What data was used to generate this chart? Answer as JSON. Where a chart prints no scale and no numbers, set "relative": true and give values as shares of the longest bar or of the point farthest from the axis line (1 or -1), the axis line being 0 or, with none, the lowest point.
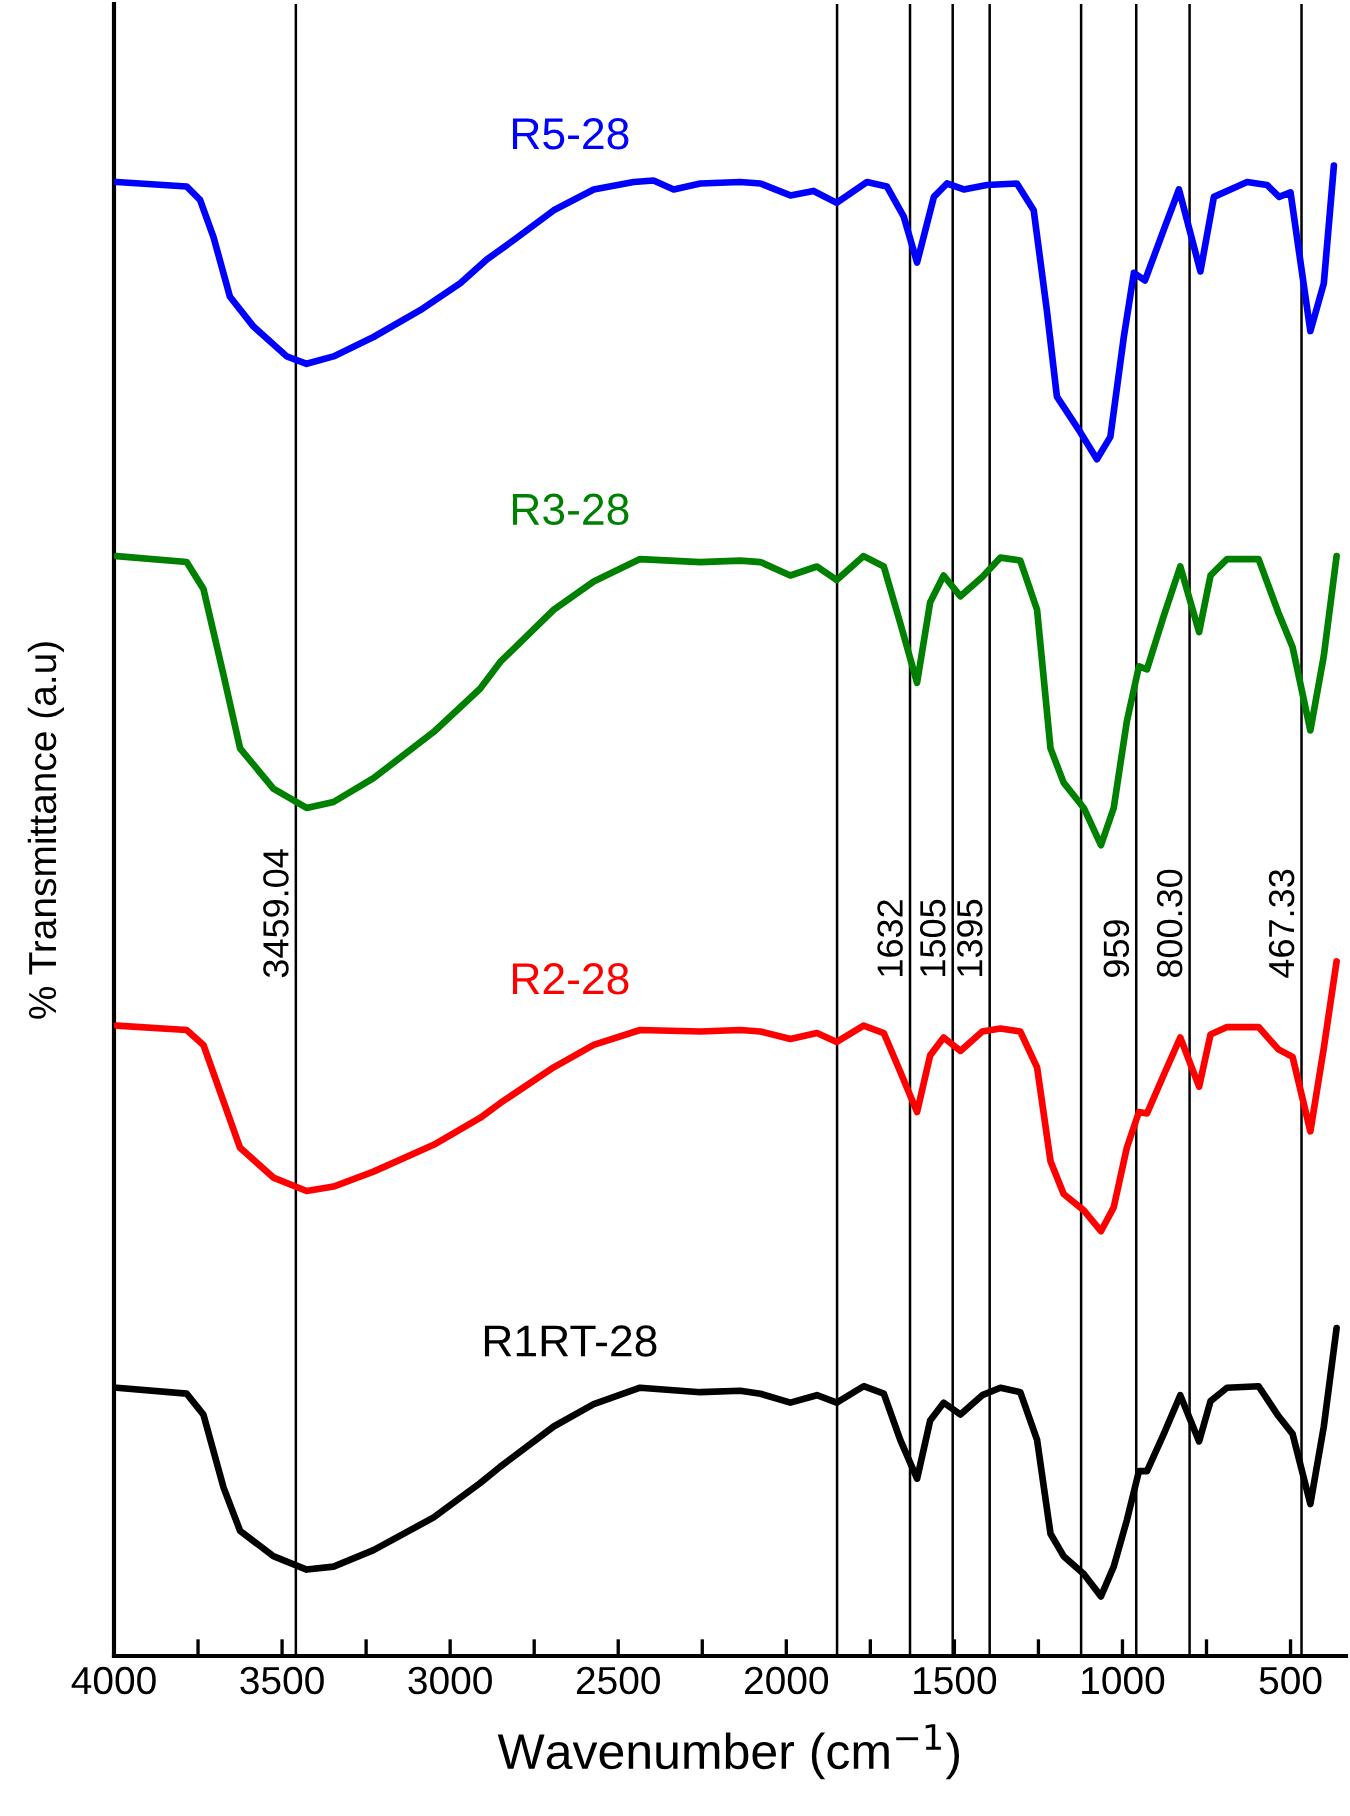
{
  "chart_data": {
    "type": "line",
    "relative": true,
    "xlabel": "Wavenumber (cm$^{−1}$)",
    "ylabel": "% Transmittance (a.u)",
    "xlim": [
      4000,
      335
    ],
    "xticks": [
      4000,
      {
        "value": 3750,
        "label": null
      },
      3500,
      {
        "value": 3250,
        "label": null
      },
      3000,
      {
        "value": 2750,
        "label": null
      },
      2500,
      {
        "value": 2250,
        "label": null
      },
      2000,
      {
        "value": 1750,
        "label": null
      },
      1500,
      {
        "value": 1250,
        "label": null
      },
      1000,
      {
        "value": 750,
        "label": null
      },
      500
    ],
    "grid": false,
    "legend": false,
    "tick_labels": "x",
    "marker": "none",
    "line_style": "solid",
    "ref_lines": [
      {
        "axis": "x",
        "value": 3459.04,
        "label": "3459.04"
      },
      {
        "axis": "x",
        "value": 1849,
        "label": null
      },
      {
        "axis": "x",
        "value": 1632,
        "label": "1632"
      },
      {
        "axis": "x",
        "value": 1505,
        "label": "1505"
      },
      {
        "axis": "x",
        "value": 1395,
        "label": "1395"
      },
      {
        "axis": "x",
        "value": 1123,
        "label": null
      },
      {
        "axis": "x",
        "value": 959,
        "label": "959"
      },
      {
        "axis": "x",
        "value": 800.3,
        "label": "800.30"
      },
      {
        "axis": "x",
        "value": 467.33,
        "label": "467.33"
      }
    ],
    "series": [
      {
        "name": "R5-28",
        "color": "#0000ff",
        "x": [
          3992,
          3784,
          3744,
          3704,
          3655,
          3585,
          3486,
          3427,
          3347,
          3228,
          3089,
          2970,
          2891,
          2811,
          2692,
          2573,
          2454,
          2395,
          2335,
          2256,
          2137,
          2077,
          1988,
          1919,
          1850,
          1760,
          1701,
          1651,
          1611,
          1561,
          1522,
          1472,
          1403,
          1314,
          1264,
          1225,
          1195,
          1125,
          1076,
          1036,
          996,
          966,
          933,
          877,
          832,
          768,
          728,
          629,
          570,
          534,
          500,
          441,
          401,
          371
        ],
        "values": [
          0.989,
          0.986,
          0.977,
          0.952,
          0.912,
          0.892,
          0.872,
          0.867,
          0.872,
          0.885,
          0.903,
          0.921,
          0.937,
          0.95,
          0.97,
          0.984,
          0.989,
          0.99,
          0.984,
          0.988,
          0.989,
          0.988,
          0.98,
          0.983,
          0.975,
          0.989,
          0.986,
          0.966,
          0.935,
          0.979,
          0.988,
          0.984,
          0.987,
          0.988,
          0.97,
          0.903,
          0.845,
          0.821,
          0.803,
          0.818,
          0.885,
          0.928,
          0.923,
          0.957,
          0.984,
          0.929,
          0.979,
          0.989,
          0.987,
          0.979,
          0.982,
          0.889,
          0.921,
          1.0
        ]
      },
      {
        "name": "R3-28",
        "color": "#008000",
        "x": [
          3992,
          3784,
          3734,
          3674,
          3625,
          3526,
          3427,
          3347,
          3228,
          3049,
          2911,
          2851,
          2692,
          2573,
          2435,
          2256,
          2137,
          2077,
          1988,
          1909,
          1850,
          1770,
          1710,
          1661,
          1611,
          1572,
          1532,
          1482,
          1417,
          1363,
          1304,
          1254,
          1214,
          1175,
          1115,
          1064,
          1026,
          987,
          951,
          927,
          877,
          828,
          772,
          738,
          689,
          595,
          536,
          494,
          441,
          401,
          363
        ],
        "values": [
          0.738,
          0.734,
          0.716,
          0.658,
          0.609,
          0.582,
          0.569,
          0.573,
          0.589,
          0.62,
          0.649,
          0.667,
          0.702,
          0.721,
          0.736,
          0.734,
          0.735,
          0.734,
          0.725,
          0.731,
          0.722,
          0.738,
          0.731,
          0.693,
          0.653,
          0.707,
          0.725,
          0.711,
          0.724,
          0.737,
          0.735,
          0.702,
          0.609,
          0.586,
          0.569,
          0.544,
          0.569,
          0.627,
          0.664,
          0.662,
          0.698,
          0.731,
          0.687,
          0.725,
          0.736,
          0.736,
          0.7,
          0.677,
          0.621,
          0.671,
          0.738
        ]
      },
      {
        "name": "R2-28",
        "color": "#ff0000",
        "x": [
          3992,
          3784,
          3734,
          3674,
          3625,
          3526,
          3427,
          3347,
          3228,
          3049,
          2911,
          2851,
          2692,
          2573,
          2435,
          2256,
          2137,
          2077,
          1988,
          1909,
          1850,
          1770,
          1710,
          1661,
          1611,
          1572,
          1532,
          1482,
          1417,
          1363,
          1304,
          1254,
          1214,
          1175,
          1115,
          1064,
          1026,
          987,
          951,
          927,
          877,
          828,
          772,
          738,
          689,
          595,
          536,
          494,
          441,
          401,
          363
        ],
        "values": [
          0.423,
          0.42,
          0.41,
          0.372,
          0.341,
          0.321,
          0.312,
          0.315,
          0.325,
          0.343,
          0.361,
          0.371,
          0.395,
          0.41,
          0.42,
          0.419,
          0.42,
          0.419,
          0.414,
          0.418,
          0.412,
          0.423,
          0.418,
          0.392,
          0.365,
          0.403,
          0.415,
          0.406,
          0.419,
          0.421,
          0.419,
          0.395,
          0.332,
          0.31,
          0.299,
          0.285,
          0.301,
          0.341,
          0.365,
          0.364,
          0.39,
          0.415,
          0.382,
          0.417,
          0.422,
          0.422,
          0.407,
          0.402,
          0.352,
          0.408,
          0.466
        ]
      },
      {
        "name": "R1RT-28",
        "color": "#000000",
        "x": [
          3992,
          3784,
          3734,
          3674,
          3625,
          3526,
          3427,
          3347,
          3228,
          3049,
          2911,
          2851,
          2692,
          2573,
          2435,
          2256,
          2137,
          2077,
          1988,
          1909,
          1850,
          1770,
          1710,
          1661,
          1611,
          1572,
          1532,
          1482,
          1417,
          1363,
          1304,
          1254,
          1214,
          1175,
          1115,
          1064,
          1026,
          987,
          951,
          927,
          877,
          828,
          772,
          738,
          689,
          595,
          536,
          494,
          441,
          401,
          363
        ],
        "values": [
          0.18,
          0.176,
          0.162,
          0.113,
          0.084,
          0.067,
          0.058,
          0.06,
          0.071,
          0.093,
          0.116,
          0.127,
          0.154,
          0.169,
          0.18,
          0.177,
          0.178,
          0.176,
          0.17,
          0.175,
          0.17,
          0.181,
          0.176,
          0.145,
          0.119,
          0.158,
          0.17,
          0.162,
          0.175,
          0.18,
          0.177,
          0.145,
          0.082,
          0.067,
          0.055,
          0.04,
          0.06,
          0.091,
          0.124,
          0.124,
          0.149,
          0.175,
          0.144,
          0.171,
          0.18,
          0.181,
          0.161,
          0.149,
          0.102,
          0.154,
          0.22
        ]
      }
    ]
  }
}
